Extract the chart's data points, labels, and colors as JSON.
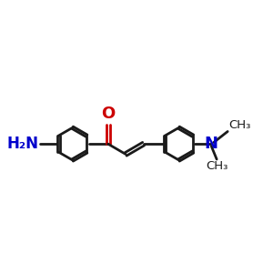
{
  "bg_color": "#ffffff",
  "bond_color": "#1a1a1a",
  "o_color": "#cc0000",
  "n_color": "#0000cc",
  "lw": 2.0,
  "r": 0.55,
  "xlim": [
    -0.2,
    8.5
  ],
  "ylim": [
    -1.5,
    2.0
  ]
}
